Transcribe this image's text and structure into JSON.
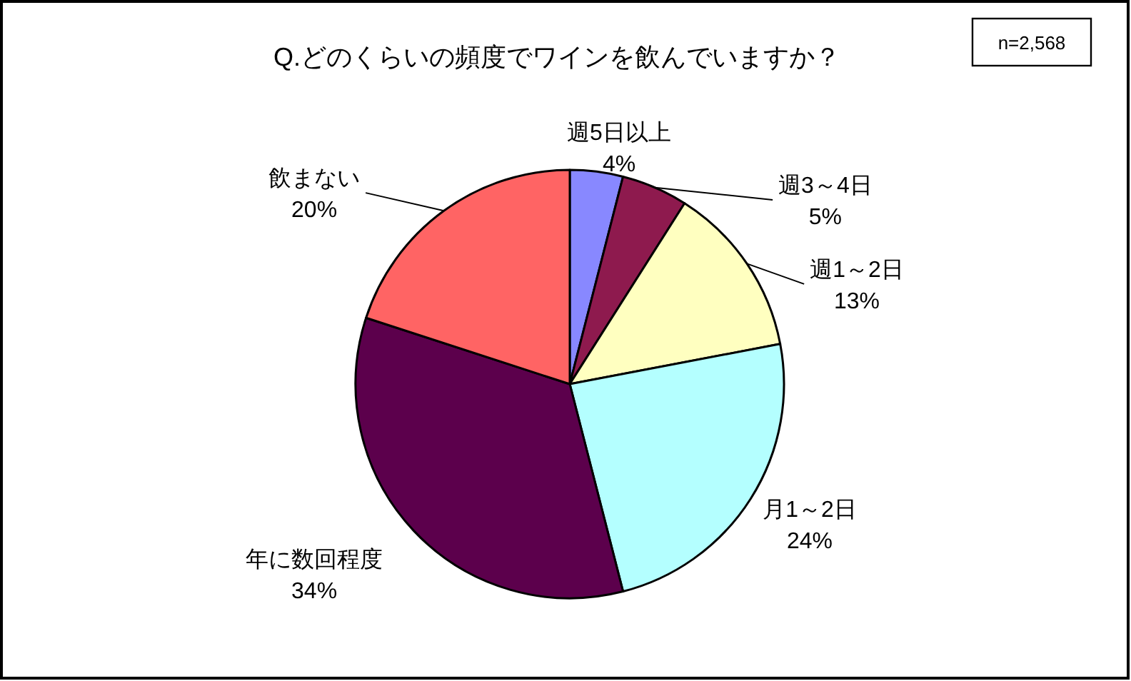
{
  "chart_data": {
    "type": "pie",
    "title": "Q.どのくらいの頻度でワインを飲んでいますか？",
    "categories": [
      "週5日以上",
      "週3～4日",
      "週1～2日",
      "月1～2日",
      "年に数回程度",
      "飲まない"
    ],
    "values": [
      4,
      5,
      13,
      24,
      34,
      20
    ],
    "colors": [
      "#8888ff",
      "#8e1a4e",
      "#ffffc0",
      "#b4ffff",
      "#5c004c",
      "#ff6464"
    ],
    "value_labels": [
      "4%",
      "5%",
      "13%",
      "24%",
      "34%",
      "20%"
    ],
    "annotations": [
      "n=2,568"
    ]
  }
}
